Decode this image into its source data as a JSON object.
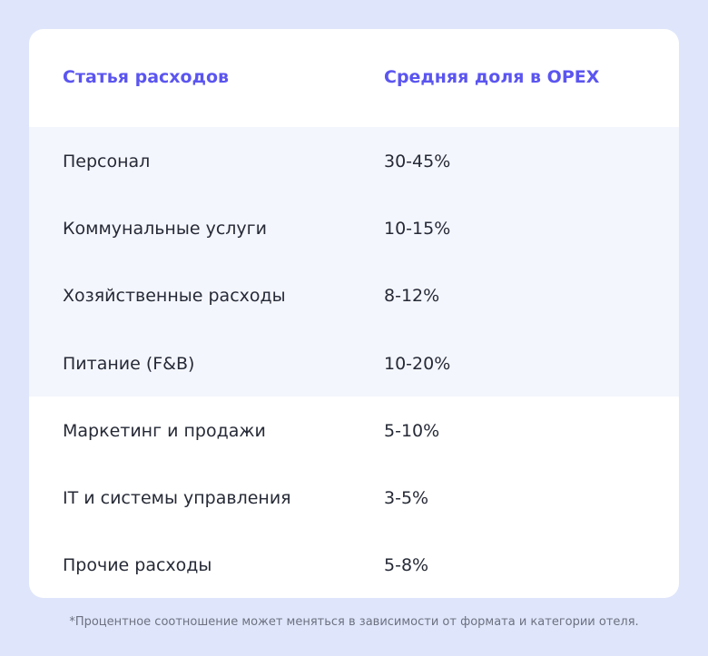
{
  "table": {
    "headers": {
      "item": "Статья расходов",
      "share": "Средняя доля в OPEX"
    },
    "rows": [
      {
        "item": "Персонал",
        "share": "30-45%"
      },
      {
        "item": "Коммунальные услуги",
        "share": "10-15%"
      },
      {
        "item": "Хозяйственные расходы",
        "share": "8-12%"
      },
      {
        "item": "Питание (F&B)",
        "share": "10-20%"
      },
      {
        "item": "Маркетинг и продажи",
        "share": "5-10%"
      },
      {
        "item": "IT и системы управления",
        "share": "3-5%"
      },
      {
        "item": "Прочие расходы",
        "share": "5-8%"
      }
    ]
  },
  "footnote": "*Процентное соотношение может меняться в зависимости от формата и категории отеля.",
  "colors": {
    "page_background": "#dfe6fb",
    "card_background": "#ffffff",
    "header_text": "#5b55f0",
    "highlight_rows_background": "#f4f6fd",
    "body_text": "#262a36",
    "footnote_text": "#6d7180"
  }
}
